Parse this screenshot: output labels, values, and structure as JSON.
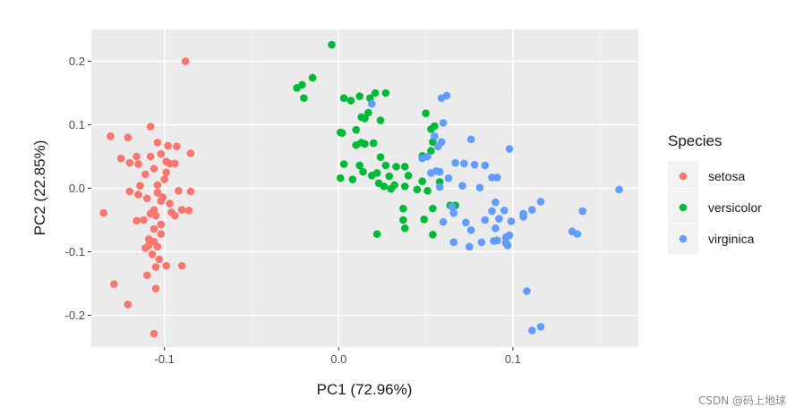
{
  "watermark": "CSDN @码上地球",
  "chart_data": {
    "type": "scatter",
    "xlabel": "PC1 (72.96%)",
    "ylabel": "PC2 (22.85%)",
    "xlim": [
      -0.142,
      0.172
    ],
    "ylim": [
      -0.25,
      0.25
    ],
    "x_ticks": [
      -0.1,
      0.0,
      0.1
    ],
    "x_tick_labels": [
      "-0.1",
      "0.0",
      "0.1"
    ],
    "y_ticks": [
      -0.2,
      -0.1,
      0.0,
      0.1,
      0.2
    ],
    "y_tick_labels": [
      "-0.2",
      "-0.1",
      "0.0",
      "0.1",
      "0.2"
    ],
    "grid": true,
    "panel_background": "#ebebeb",
    "legend": {
      "title": "Species",
      "position": "right"
    },
    "series": [
      {
        "name": "setosa",
        "color": "#f8766d",
        "points": [
          [
            -0.088,
            0.2
          ],
          [
            -0.108,
            0.097
          ],
          [
            -0.121,
            0.08
          ],
          [
            -0.131,
            0.082
          ],
          [
            -0.104,
            0.072
          ],
          [
            -0.098,
            0.067
          ],
          [
            -0.093,
            0.066
          ],
          [
            -0.085,
            0.055
          ],
          [
            -0.116,
            0.05
          ],
          [
            -0.108,
            0.05
          ],
          [
            -0.102,
            0.054
          ],
          [
            -0.099,
            0.042
          ],
          [
            -0.097,
            0.039
          ],
          [
            -0.094,
            0.039
          ],
          [
            -0.106,
            0.031
          ],
          [
            -0.12,
            0.04
          ],
          [
            -0.125,
            0.047
          ],
          [
            -0.115,
            0.038
          ],
          [
            -0.099,
            0.025
          ],
          [
            -0.111,
            0.022
          ],
          [
            -0.1,
            0.014
          ],
          [
            -0.114,
            0.004
          ],
          [
            -0.104,
            0.005
          ],
          [
            -0.12,
            -0.005
          ],
          [
            -0.092,
            -0.004
          ],
          [
            -0.085,
            -0.005
          ],
          [
            -0.104,
            -0.007
          ],
          [
            -0.115,
            -0.01
          ],
          [
            -0.101,
            -0.014
          ],
          [
            -0.11,
            -0.016
          ],
          [
            -0.102,
            -0.02
          ],
          [
            -0.097,
            -0.024
          ],
          [
            -0.106,
            -0.034
          ],
          [
            -0.09,
            -0.034
          ],
          [
            -0.086,
            -0.035
          ],
          [
            -0.096,
            -0.038
          ],
          [
            -0.108,
            -0.04
          ],
          [
            -0.135,
            -0.039
          ],
          [
            -0.105,
            -0.043
          ],
          [
            -0.094,
            -0.043
          ],
          [
            -0.116,
            -0.051
          ],
          [
            -0.102,
            -0.057
          ],
          [
            -0.112,
            -0.05
          ],
          [
            -0.106,
            -0.064
          ],
          [
            -0.102,
            -0.072
          ],
          [
            -0.109,
            -0.08
          ],
          [
            -0.106,
            -0.084
          ],
          [
            -0.109,
            -0.09
          ],
          [
            -0.111,
            -0.094
          ],
          [
            -0.104,
            -0.092
          ],
          [
            -0.107,
            -0.104
          ],
          [
            -0.103,
            -0.112
          ],
          [
            -0.09,
            -0.122
          ],
          [
            -0.099,
            -0.122
          ],
          [
            -0.105,
            -0.124
          ],
          [
            -0.11,
            -0.137
          ],
          [
            -0.129,
            -0.151
          ],
          [
            -0.105,
            -0.158
          ],
          [
            -0.121,
            -0.183
          ],
          [
            -0.106,
            -0.229
          ]
        ]
      },
      {
        "name": "versicolor",
        "color": "#00ba38",
        "points": [
          [
            -0.004,
            0.226
          ],
          [
            -0.015,
            0.174
          ],
          [
            -0.021,
            0.163
          ],
          [
            -0.024,
            0.158
          ],
          [
            -0.02,
            0.142
          ],
          [
            0.003,
            0.142
          ],
          [
            0.007,
            0.138
          ],
          [
            0.018,
            0.142
          ],
          [
            0.012,
            0.145
          ],
          [
            0.021,
            0.15
          ],
          [
            0.027,
            0.15
          ],
          [
            0.05,
            0.118
          ],
          [
            0.017,
            0.119
          ],
          [
            0.013,
            0.112
          ],
          [
            0.015,
            0.11
          ],
          [
            0.024,
            0.107
          ],
          [
            0.055,
            0.098
          ],
          [
            0.053,
            0.093
          ],
          [
            0.01,
            0.092
          ],
          [
            0.001,
            0.088
          ],
          [
            0.002,
            0.087
          ],
          [
            0.013,
            0.072
          ],
          [
            0.015,
            0.07
          ],
          [
            0.01,
            0.068
          ],
          [
            0.02,
            0.071
          ],
          [
            0.054,
            0.073
          ],
          [
            0.053,
            0.059
          ],
          [
            0.024,
            0.049
          ],
          [
            0.048,
            0.051
          ],
          [
            0.003,
            0.038
          ],
          [
            0.012,
            0.036
          ],
          [
            0.027,
            0.036
          ],
          [
            0.033,
            0.034
          ],
          [
            0.038,
            0.034
          ],
          [
            0.014,
            0.026
          ],
          [
            0.022,
            0.024
          ],
          [
            0.001,
            0.016
          ],
          [
            0.019,
            0.02
          ],
          [
            0.029,
            0.019
          ],
          [
            0.04,
            0.02
          ],
          [
            0.008,
            0.014
          ],
          [
            0.023,
            0.008
          ],
          [
            0.048,
            0.011
          ],
          [
            0.058,
            0.01
          ],
          [
            0.026,
            0.003
          ],
          [
            0.032,
            0.005
          ],
          [
            0.03,
            -0.001
          ],
          [
            0.045,
            -0.002
          ],
          [
            0.051,
            -0.004
          ],
          [
            0.038,
            0.003
          ],
          [
            0.064,
            -0.027
          ],
          [
            0.037,
            -0.032
          ],
          [
            0.054,
            -0.032
          ],
          [
            0.067,
            -0.027
          ],
          [
            0.037,
            -0.05
          ],
          [
            0.049,
            -0.049
          ],
          [
            0.038,
            -0.063
          ],
          [
            0.022,
            -0.072
          ],
          [
            0.054,
            -0.073
          ]
        ]
      },
      {
        "name": "virginica",
        "color": "#619cff",
        "points": [
          [
            0.062,
            0.146
          ],
          [
            0.059,
            0.142
          ],
          [
            0.019,
            0.133
          ],
          [
            0.06,
            0.103
          ],
          [
            0.055,
            0.082
          ],
          [
            0.076,
            0.077
          ],
          [
            0.059,
            0.073
          ],
          [
            0.057,
            0.066
          ],
          [
            0.098,
            0.062
          ],
          [
            0.051,
            0.05
          ],
          [
            0.048,
            0.047
          ],
          [
            0.067,
            0.04
          ],
          [
            0.078,
            0.037
          ],
          [
            0.072,
            0.039
          ],
          [
            0.084,
            0.036
          ],
          [
            0.056,
            0.027
          ],
          [
            0.058,
            0.026
          ],
          [
            0.053,
            0.024
          ],
          [
            0.088,
            0.017
          ],
          [
            0.091,
            0.017
          ],
          [
            0.063,
            0.016
          ],
          [
            0.071,
            0.004
          ],
          [
            0.161,
            -0.002
          ],
          [
            0.081,
            0.001
          ],
          [
            0.058,
            0.002
          ],
          [
            0.09,
            -0.022
          ],
          [
            0.116,
            -0.021
          ],
          [
            0.065,
            -0.029
          ],
          [
            0.106,
            -0.04
          ],
          [
            0.14,
            -0.036
          ],
          [
            0.111,
            -0.034
          ],
          [
            0.095,
            -0.035
          ],
          [
            0.066,
            -0.039
          ],
          [
            0.088,
            -0.036
          ],
          [
            0.106,
            -0.045
          ],
          [
            0.092,
            -0.048
          ],
          [
            0.099,
            -0.052
          ],
          [
            0.084,
            -0.05
          ],
          [
            0.06,
            -0.053
          ],
          [
            0.073,
            -0.054
          ],
          [
            0.09,
            -0.063
          ],
          [
            0.076,
            -0.066
          ],
          [
            0.096,
            -0.077
          ],
          [
            0.098,
            -0.074
          ],
          [
            0.134,
            -0.068
          ],
          [
            0.137,
            -0.072
          ],
          [
            0.066,
            -0.085
          ],
          [
            0.082,
            -0.085
          ],
          [
            0.089,
            -0.083
          ],
          [
            0.096,
            -0.086
          ],
          [
            0.097,
            -0.09
          ],
          [
            0.091,
            -0.082
          ],
          [
            0.075,
            -0.092
          ],
          [
            0.108,
            -0.162
          ],
          [
            0.116,
            -0.218
          ],
          [
            0.111,
            -0.224
          ]
        ]
      }
    ]
  }
}
